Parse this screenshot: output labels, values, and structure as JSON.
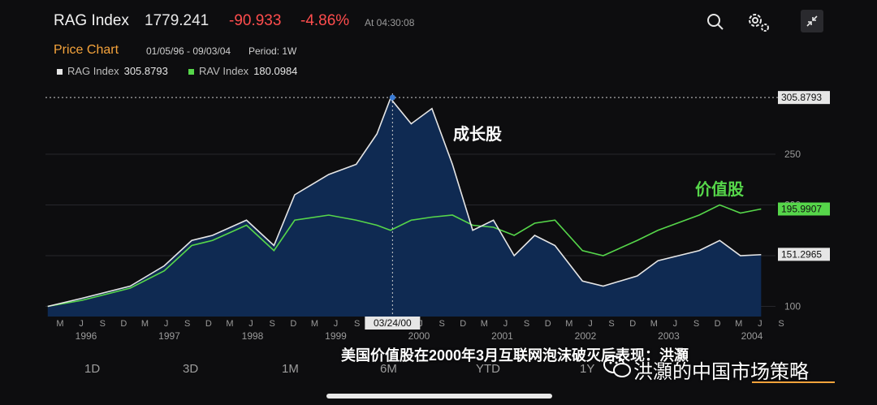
{
  "header": {
    "title": "RAG Index",
    "last": "1779.241",
    "change": "-90.933",
    "change_pct": "-4.86%",
    "time": "At 04:30:08"
  },
  "subheader": {
    "label": "Price Chart",
    "range": "01/05/96 - 09/03/04",
    "period": "Period: 1W"
  },
  "legend": [
    {
      "name": "RAG Index",
      "value": "305.8793",
      "color": "#e6e6e6"
    },
    {
      "name": "RAV Index",
      "value": "180.0984",
      "color": "#56d64a"
    }
  ],
  "tabs": [
    "1D",
    "3D",
    "1M",
    "6M",
    "YTD",
    "1Y"
  ],
  "caption": "美国价值股在2000年3月互联网泡沫破灭后表现：洪灝",
  "watermark": "洪灝的中国市场策略",
  "colors": {
    "growth": "#e6e6e6",
    "value": "#56d64a",
    "area": "#0f2a52",
    "accent": "#f5a33b",
    "down": "#ff4d4d"
  },
  "chart_data": {
    "type": "line",
    "x_unit": "date",
    "x_range": [
      "1996-01-05",
      "2004-09-03"
    ],
    "y_ticks": [
      100,
      150,
      200,
      250
    ],
    "ylim": [
      90,
      310
    ],
    "crosshair_label": "03/24/00",
    "annotations": [
      "成长股",
      "价值股"
    ],
    "last_value_labels": [
      "305.8793",
      "195.9907",
      "151.2965"
    ],
    "month_ticks": [
      "M",
      "J",
      "S",
      "D",
      "M",
      "J",
      "S",
      "D",
      "M",
      "J",
      "S",
      "D",
      "M",
      "J",
      "S",
      "D",
      "M",
      "J",
      "S",
      "D",
      "M",
      "J",
      "S",
      "D",
      "M",
      "J",
      "S",
      "D",
      "M",
      "J",
      "S",
      "D",
      "M",
      "J",
      "S"
    ],
    "year_labels": [
      "1996",
      "1997",
      "1998",
      "1999",
      "2000",
      "2001",
      "2002",
      "2003",
      "2004"
    ],
    "series": [
      {
        "name": "RAG Index",
        "x": [
          "1996-01",
          "1996-06",
          "1997-01",
          "1997-06",
          "1997-10",
          "1998-01",
          "1998-06",
          "1998-10",
          "1999-01",
          "1999-06",
          "1999-10",
          "2000-01",
          "2000-03",
          "2000-06",
          "2000-09",
          "2000-12",
          "2001-03",
          "2001-06",
          "2001-09",
          "2001-12",
          "2002-03",
          "2002-07",
          "2002-10",
          "2003-03",
          "2003-06",
          "2003-12",
          "2004-03",
          "2004-06",
          "2004-09"
        ],
        "values": [
          100,
          108,
          120,
          140,
          165,
          170,
          185,
          160,
          210,
          230,
          240,
          270,
          305,
          280,
          295,
          240,
          175,
          185,
          150,
          170,
          160,
          125,
          120,
          130,
          145,
          155,
          165,
          150,
          151
        ]
      },
      {
        "name": "RAV Index",
        "x": [
          "1996-01",
          "1996-06",
          "1997-01",
          "1997-06",
          "1997-10",
          "1998-01",
          "1998-06",
          "1998-10",
          "1999-01",
          "1999-06",
          "1999-10",
          "2000-01",
          "2000-03",
          "2000-06",
          "2000-09",
          "2000-12",
          "2001-03",
          "2001-06",
          "2001-09",
          "2001-12",
          "2002-03",
          "2002-07",
          "2002-10",
          "2003-03",
          "2003-06",
          "2003-12",
          "2004-03",
          "2004-06",
          "2004-09"
        ],
        "values": [
          100,
          106,
          118,
          135,
          160,
          165,
          180,
          155,
          185,
          190,
          185,
          180,
          175,
          185,
          188,
          190,
          180,
          178,
          170,
          182,
          185,
          155,
          150,
          165,
          175,
          190,
          200,
          192,
          196
        ]
      }
    ]
  }
}
